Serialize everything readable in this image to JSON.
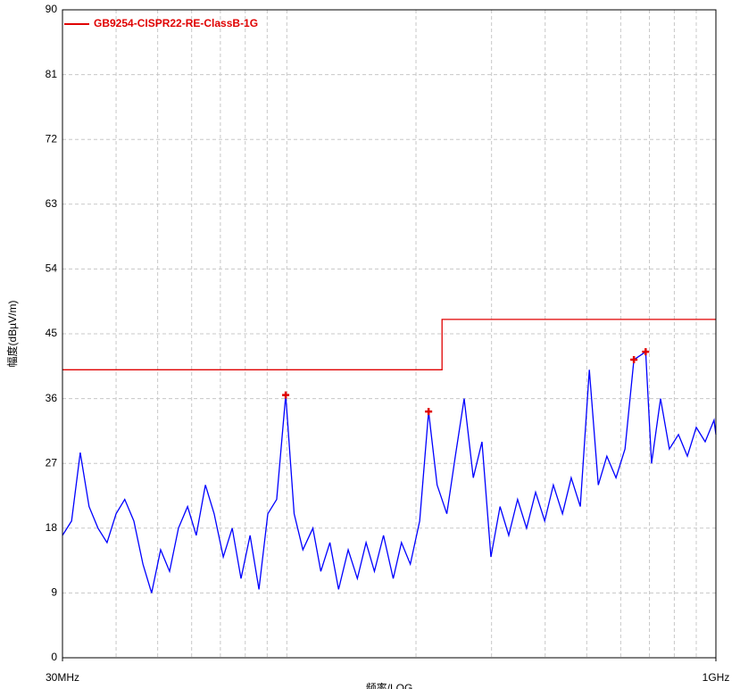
{
  "chart_data": {
    "type": "line",
    "xlabel": "频率/LOG",
    "ylabel": "幅度(dBµV/m)",
    "xscale": "log",
    "xlim": [
      30,
      1000
    ],
    "ylim": [
      0,
      90
    ],
    "xticks": [
      {
        "value": 30,
        "label": "30MHz"
      },
      {
        "value": 1000,
        "label": "1GHz"
      }
    ],
    "xgrid": [
      40,
      50,
      60,
      70,
      80,
      90,
      100,
      200,
      300,
      400,
      500,
      600,
      700,
      800,
      900
    ],
    "yticks": [
      0,
      9,
      18,
      27,
      36,
      45,
      54,
      63,
      72,
      81,
      90
    ],
    "grid": true,
    "legend": "top-left",
    "series": [
      {
        "name": "GB9254-CISPR22-RE-ClassB-1G",
        "color": "#e00000",
        "x": [
          30,
          230,
          230,
          1000
        ],
        "values": [
          40,
          40,
          47,
          47
        ]
      },
      {
        "color": "#0000ff",
        "x": [
          30,
          31.5,
          33.0,
          34.6,
          36.3,
          38.1,
          40.0,
          41.9,
          44.0,
          46.2,
          48.4,
          50.8,
          53.3,
          55.9,
          58.7,
          61.5,
          64.6,
          67.7,
          71.1,
          74.6,
          78.2,
          82.1,
          86.1,
          90.3,
          94.7,
          99.4,
          104,
          109,
          115,
          120,
          126,
          132,
          139,
          146,
          153,
          160,
          168,
          177,
          185,
          194,
          204,
          214,
          224,
          236,
          247,
          259,
          272,
          285,
          299,
          314,
          329,
          345,
          362,
          380,
          399,
          418,
          439,
          460,
          483,
          507,
          532,
          557,
          585,
          614,
          644,
          686,
          708,
          743,
          779,
          818,
          858,
          900,
          944,
          990,
          1000
        ],
        "values": [
          17,
          19,
          28.5,
          21,
          18,
          16,
          20,
          22,
          19,
          13,
          9,
          15,
          12,
          18,
          21,
          17,
          24,
          20,
          14,
          18,
          11,
          17,
          9.5,
          20,
          22,
          36.5,
          20,
          15,
          18,
          12,
          16,
          9.5,
          15,
          11,
          16,
          12,
          17,
          11,
          16,
          13,
          19,
          34.2,
          24,
          20,
          28,
          36,
          25,
          30,
          14,
          21,
          17,
          22,
          18,
          23,
          19,
          24,
          20,
          25,
          21,
          40,
          24,
          28,
          25,
          29,
          41.4,
          42.5,
          27,
          36,
          29,
          31,
          28,
          32,
          30,
          33,
          31
        ]
      }
    ],
    "markers": {
      "color": "#e00000",
      "x": [
        99.4,
        214,
        644,
        686
      ],
      "values": [
        36.5,
        34.2,
        41.4,
        42.5
      ]
    }
  }
}
